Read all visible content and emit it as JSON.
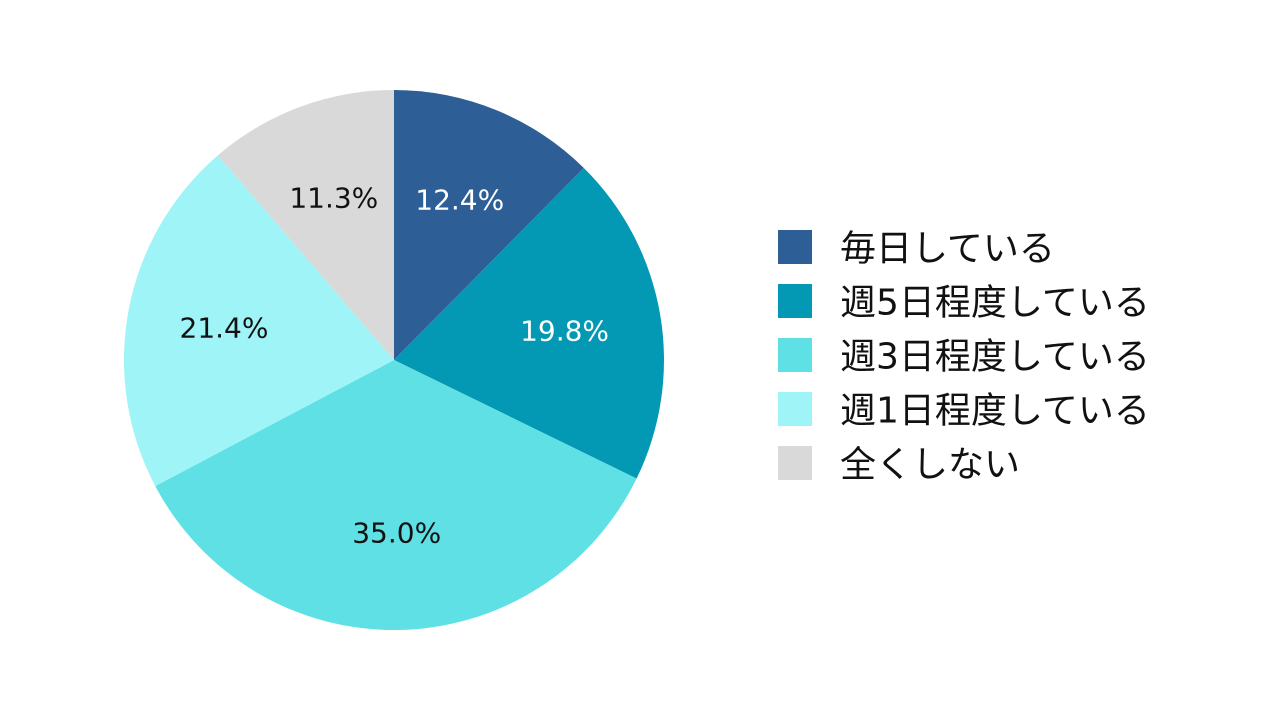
{
  "chart_data": {
    "type": "pie",
    "title": "",
    "categories": [
      "毎日している",
      "週5日程度している",
      "週3日程度している",
      "週1日程度している",
      "全くしない"
    ],
    "values": [
      12.4,
      19.8,
      35.0,
      21.4,
      11.3
    ],
    "labels": [
      "12.4%",
      "19.8%",
      "35.0%",
      "21.4%",
      "11.3%"
    ],
    "colors": [
      "#2e5e96",
      "#0398b3",
      "#5ee0e5",
      "#9ef4f6",
      "#d9d9d9"
    ],
    "label_colors": [
      "#ffffff",
      "#ffffff",
      "#111111",
      "#111111",
      "#111111"
    ],
    "legend_position": "right",
    "start_angle": "12 o'clock",
    "direction": "clockwise"
  }
}
